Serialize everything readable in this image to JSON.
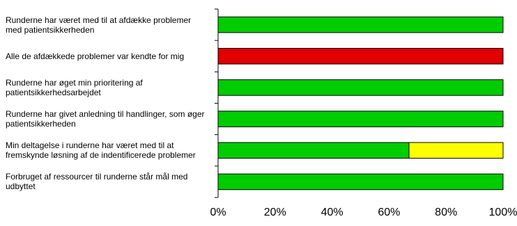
{
  "chart_data": {
    "type": "bar",
    "orientation": "horizontal",
    "stacked": true,
    "categories": [
      "Runderne har været med til at afdække problemer med patientsikkerheden",
      "Alle de afdækkede problemer var kendte for mig",
      "Runderne har øget min prioritering af patientsikkerhedsarbejdet",
      "Runderne har givet anledning til handlinger, som øger patientsikkerheden",
      "Min deltagelse i runderne har været med til at fremskynde løsning af de indentificerede problemer",
      "Forbruget af ressourcer til runderne står mål med udbyttet"
    ],
    "series": [
      {
        "color": "#00cc00",
        "values": [
          100,
          0,
          100,
          100,
          67,
          100
        ]
      },
      {
        "color": "#e00000",
        "values": [
          0,
          100,
          0,
          0,
          0,
          0
        ]
      },
      {
        "color": "#ffff00",
        "values": [
          0,
          0,
          0,
          0,
          33,
          0
        ]
      }
    ],
    "xlim": [
      0,
      100
    ],
    "xticks": [
      {
        "value": 0,
        "label": "0%"
      },
      {
        "value": 20,
        "label": "20%"
      },
      {
        "value": 40,
        "label": "40%"
      },
      {
        "value": 60,
        "label": "60%"
      },
      {
        "value": 80,
        "label": "80%"
      },
      {
        "value": 100,
        "label": "100%"
      }
    ]
  }
}
